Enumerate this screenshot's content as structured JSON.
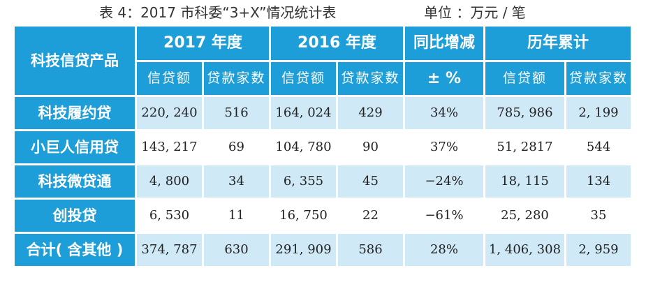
{
  "caption": {
    "title": "表 4：2017 市科委“3+X”情况统计表",
    "unit": "单位 ：万元 / 笔"
  },
  "header": {
    "product_col": "科技信贷产品",
    "groups": [
      "2017 年度",
      "2016 年度",
      "同比增减",
      "历年累计"
    ],
    "sub_credit": "信贷额",
    "sub_count": "贷款家数",
    "pct": "± %"
  },
  "rows": [
    {
      "name": "科技履约贷",
      "c2017": "220, 240",
      "n2017": "516",
      "c2016": "164, 024",
      "n2016": "429",
      "yoy": "34%",
      "ccum": "785, 986",
      "ncum": "2, 199"
    },
    {
      "name": "小巨人信用贷",
      "c2017": "143, 217",
      "n2017": "69",
      "c2016": "104, 780",
      "n2016": "90",
      "yoy": "37%",
      "ccum": "51, 2817",
      "ncum": "544"
    },
    {
      "name": "科技微贷通",
      "c2017": "4, 800",
      "n2017": "34",
      "c2016": "6, 355",
      "n2016": "45",
      "yoy": "−24%",
      "ccum": "18, 115",
      "ncum": "134"
    },
    {
      "name": "创投贷",
      "c2017": "6, 530",
      "n2017": "11",
      "c2016": "16, 750",
      "n2016": "22",
      "yoy": "−61%",
      "ccum": "25, 280",
      "ncum": "35"
    },
    {
      "name": "合计( 含其他 )",
      "c2017": "374, 787",
      "n2017": "630",
      "c2016": "291, 909",
      "n2016": "586",
      "yoy": "28%",
      "ccum": "1, 406, 308",
      "ncum": "2, 959"
    }
  ],
  "colors": {
    "header_blue": "#1d9ed8",
    "band_light": "#cfe9f6",
    "band_white": "#ffffff"
  }
}
